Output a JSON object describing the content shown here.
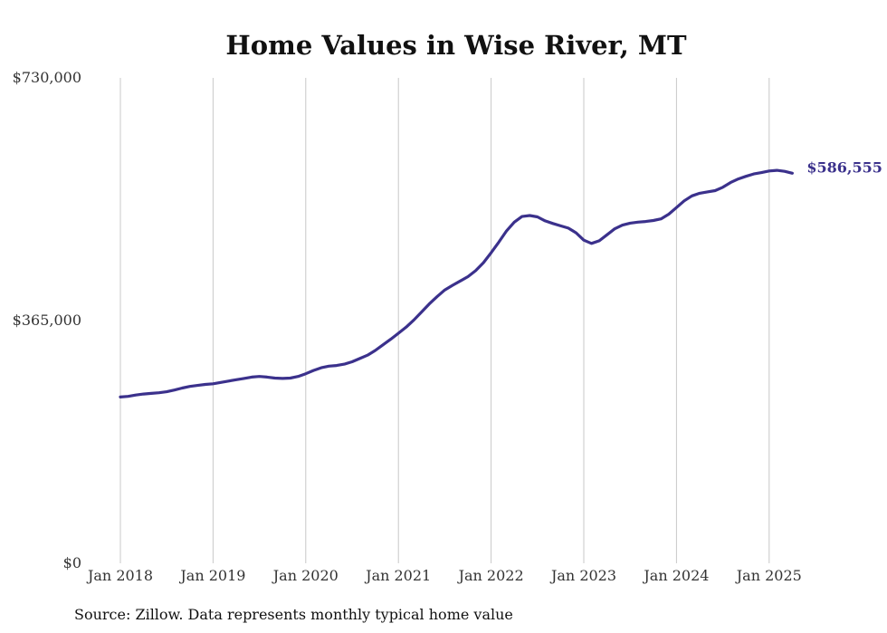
{
  "chart_data": {
    "type": "line",
    "title": "Home Values in Wise River, MT",
    "xlabel": "",
    "ylabel": "",
    "ylim": [
      0,
      730000
    ],
    "y_ticks": [
      0,
      365000,
      730000
    ],
    "y_tick_labels": [
      "$0",
      "$365,000",
      "$730,000"
    ],
    "x_ticks": [
      "2018-01",
      "2019-01",
      "2020-01",
      "2021-01",
      "2022-01",
      "2023-01",
      "2024-01",
      "2025-01"
    ],
    "x_tick_labels": [
      "Jan 2018",
      "Jan 2019",
      "Jan 2020",
      "Jan 2021",
      "Jan 2022",
      "Jan 2023",
      "Jan 2024",
      "Jan 2025"
    ],
    "grid": "vertical",
    "line_color": "#3b318c",
    "series": [
      {
        "x": [
          "2018-01",
          "2018-02",
          "2018-03",
          "2018-04",
          "2018-05",
          "2018-06",
          "2018-07",
          "2018-08",
          "2018-09",
          "2018-10",
          "2018-11",
          "2018-12",
          "2019-01",
          "2019-02",
          "2019-03",
          "2019-04",
          "2019-05",
          "2019-06",
          "2019-07",
          "2019-08",
          "2019-09",
          "2019-10",
          "2019-11",
          "2019-12",
          "2020-01",
          "2020-02",
          "2020-03",
          "2020-04",
          "2020-05",
          "2020-06",
          "2020-07",
          "2020-08",
          "2020-09",
          "2020-10",
          "2020-11",
          "2020-12",
          "2021-01",
          "2021-02",
          "2021-03",
          "2021-04",
          "2021-05",
          "2021-06",
          "2021-07",
          "2021-08",
          "2021-09",
          "2021-10",
          "2021-11",
          "2021-12",
          "2022-01",
          "2022-02",
          "2022-03",
          "2022-04",
          "2022-05",
          "2022-06",
          "2022-07",
          "2022-08",
          "2022-09",
          "2022-10",
          "2022-11",
          "2022-12",
          "2023-01",
          "2023-02",
          "2023-03",
          "2023-04",
          "2023-05",
          "2023-06",
          "2023-07",
          "2023-08",
          "2023-09",
          "2023-10",
          "2023-11",
          "2023-12",
          "2024-01",
          "2024-02",
          "2024-03",
          "2024-04",
          "2024-05",
          "2024-06",
          "2024-07",
          "2024-08",
          "2024-09",
          "2024-10",
          "2024-11",
          "2024-12",
          "2025-01",
          "2025-02",
          "2025-03",
          "2025-04"
        ],
        "values": [
          250000,
          251000,
          253000,
          254500,
          255500,
          256500,
          258000,
          260500,
          263500,
          266000,
          267500,
          269000,
          270000,
          272000,
          274000,
          276000,
          278000,
          280000,
          281000,
          280000,
          278500,
          278000,
          278500,
          281000,
          285000,
          290000,
          294000,
          296500,
          297500,
          299500,
          303000,
          308000,
          313000,
          320000,
          328500,
          337000,
          346000,
          355000,
          366000,
          378000,
          390000,
          401000,
          411000,
          418000,
          424500,
          431000,
          440000,
          452000,
          467000,
          483000,
          500000,
          513000,
          521500,
          523000,
          521000,
          515000,
          511000,
          507500,
          504000,
          497000,
          486000,
          481000,
          485000,
          494000,
          503000,
          508500,
          511500,
          513000,
          514000,
          515500,
          518000,
          525000,
          535000,
          545000,
          552500,
          556500,
          558500,
          560500,
          565500,
          572500,
          578000,
          582000,
          585500,
          587500,
          590000,
          591000,
          589500,
          586555
        ]
      }
    ],
    "end_label": "$586,555",
    "source": "Source: Zillow. Data represents monthly typical home value"
  }
}
